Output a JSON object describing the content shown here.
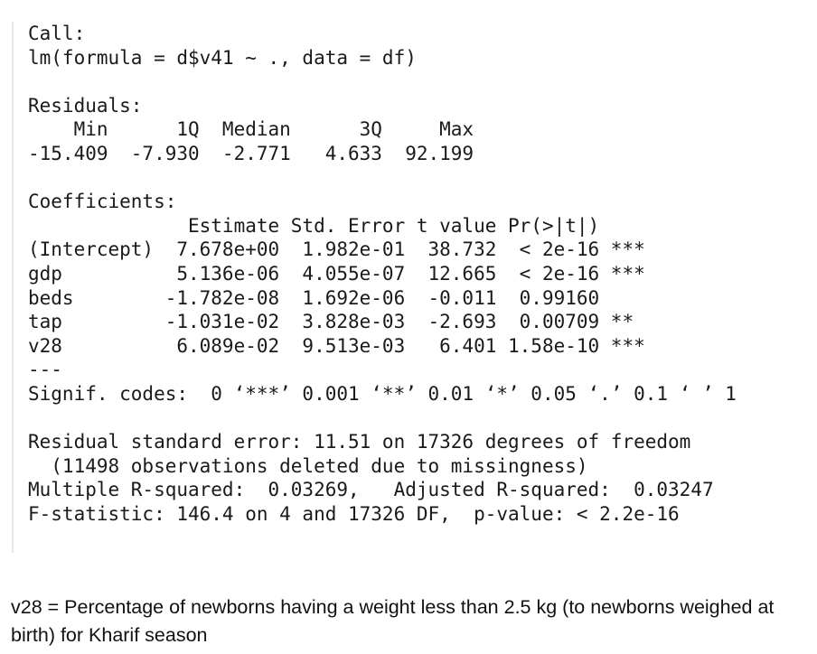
{
  "console": {
    "lines": [
      "Call:",
      "lm(formula = d$v41 ~ ., data = df)",
      "",
      "Residuals:",
      "    Min      1Q  Median      3Q     Max ",
      "-15.409  -7.930  -2.771   4.633  92.199 ",
      "",
      "Coefficients:",
      "              Estimate Std. Error t value Pr(>|t|)    ",
      "(Intercept)  7.678e+00  1.982e-01  38.732  < 2e-16 ***",
      "gdp          5.136e-06  4.055e-07  12.665  < 2e-16 ***",
      "beds        -1.782e-08  1.692e-06  -0.011  0.99160    ",
      "tap         -1.031e-02  3.828e-03  -2.693  0.00709 ** ",
      "v28          6.089e-02  9.513e-03   6.401 1.58e-10 ***",
      "---",
      "Signif. codes:  0 ‘***’ 0.001 ‘**’ 0.01 ‘*’ 0.05 ‘.’ 0.1 ‘ ’ 1",
      "",
      "Residual standard error: 11.51 on 17326 degrees of freedom",
      "  (11498 observations deleted due to missingness)",
      "Multiple R-squared:  0.03269,\tAdjusted R-squared:  0.03247 ",
      "F-statistic: 146.4 on 4 and 17326 DF,  p-value: < 2.2e-16"
    ]
  },
  "caption": "v28 = Percentage of newborns having a weight less than 2.5 kg (to newborns weighed at birth) for Kharif season"
}
